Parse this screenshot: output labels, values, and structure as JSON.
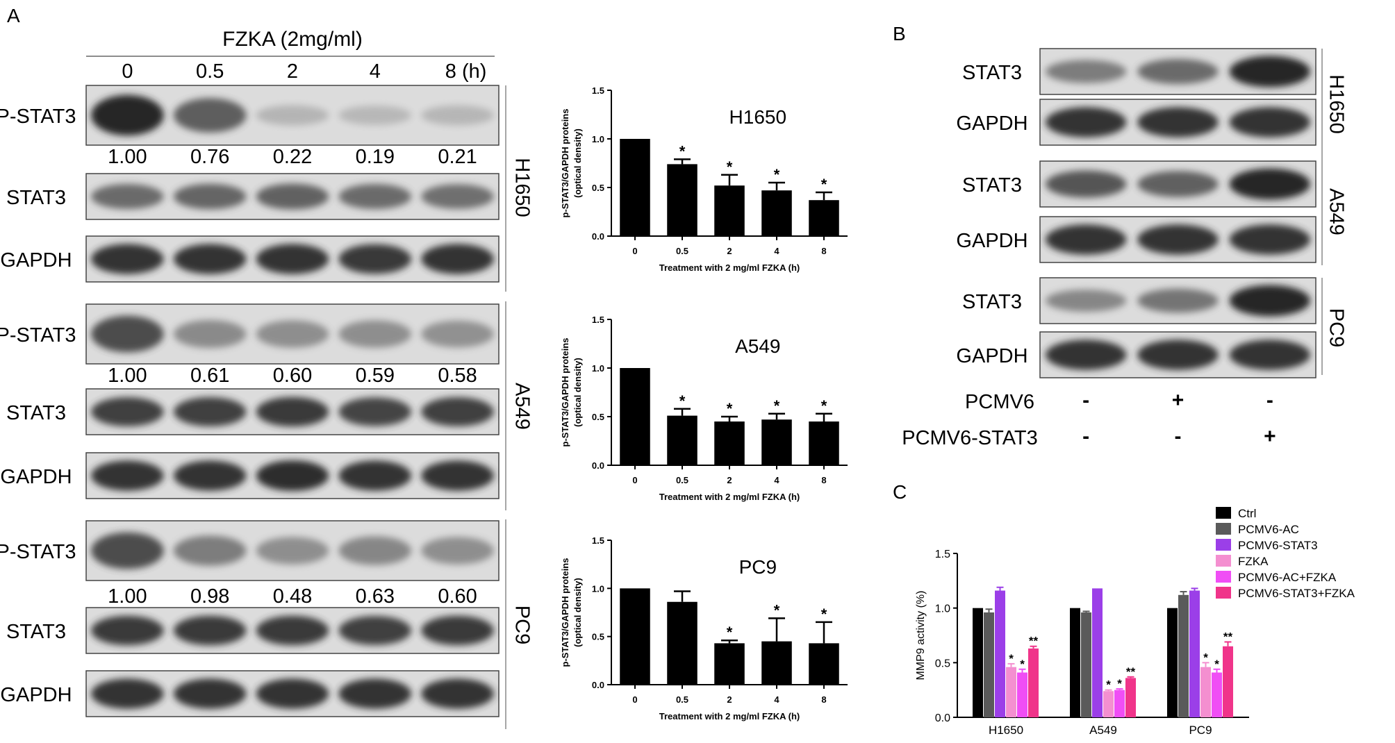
{
  "panel_labels": {
    "a": "A",
    "b": "B",
    "c": "C"
  },
  "blot_a": {
    "header": "FZKA (2mg/ml)",
    "times": [
      "0",
      "0.5",
      "2",
      "4",
      "8 (h)"
    ],
    "groups": [
      {
        "cell": "H1650",
        "rows": [
          "P-STAT3",
          "STAT3",
          "GAPDH"
        ],
        "densities": [
          "1.00",
          "0.76",
          "0.22",
          "0.19",
          "0.21"
        ],
        "band_intensity": {
          "P-STAT3": [
            1.0,
            0.76,
            0.22,
            0.19,
            0.21
          ],
          "STAT3": [
            0.7,
            0.72,
            0.74,
            0.7,
            0.68
          ],
          "GAPDH": [
            0.95,
            0.95,
            0.95,
            0.93,
            0.95
          ]
        }
      },
      {
        "cell": "A549",
        "rows": [
          "P-STAT3",
          "STAT3",
          "GAPDH"
        ],
        "densities": [
          "1.00",
          "0.61",
          "0.60",
          "0.59",
          "0.58"
        ],
        "band_intensity": {
          "P-STAT3": [
            0.85,
            0.52,
            0.5,
            0.5,
            0.48
          ],
          "STAT3": [
            0.9,
            0.9,
            0.92,
            0.88,
            0.9
          ],
          "GAPDH": [
            0.95,
            0.95,
            0.97,
            0.95,
            0.95
          ]
        }
      },
      {
        "cell": "PC9",
        "rows": [
          "P-STAT3",
          "STAT3",
          "GAPDH"
        ],
        "densities": [
          "1.00",
          "0.98",
          "0.48",
          "0.63",
          "0.60"
        ],
        "band_intensity": {
          "P-STAT3": [
            0.85,
            0.6,
            0.5,
            0.55,
            0.5
          ],
          "STAT3": [
            0.92,
            0.92,
            0.92,
            0.9,
            0.92
          ],
          "GAPDH": [
            0.95,
            0.95,
            0.95,
            0.95,
            0.95
          ]
        }
      }
    ]
  },
  "blot_b": {
    "groups": [
      {
        "cell": "H1650",
        "rows": [
          "STAT3",
          "GAPDH"
        ],
        "band_intensity": {
          "STAT3": [
            0.6,
            0.7,
            1.0
          ],
          "GAPDH": [
            0.95,
            0.95,
            0.95
          ]
        }
      },
      {
        "cell": "A549",
        "rows": [
          "STAT3",
          "GAPDH"
        ],
        "band_intensity": {
          "STAT3": [
            0.8,
            0.75,
            1.0
          ],
          "GAPDH": [
            0.95,
            0.95,
            0.95
          ]
        }
      },
      {
        "cell": "PC9",
        "rows": [
          "STAT3",
          "GAPDH"
        ],
        "band_intensity": {
          "STAT3": [
            0.55,
            0.65,
            1.0
          ],
          "GAPDH": [
            0.95,
            0.95,
            0.95
          ]
        }
      }
    ],
    "conditions": [
      {
        "label": "PCMV6",
        "signs": [
          "-",
          "+",
          "-"
        ]
      },
      {
        "label": "PCMV6-STAT3",
        "signs": [
          "-",
          "-",
          "+"
        ]
      }
    ]
  },
  "chart_data": [
    {
      "type": "bar",
      "title": "H1650",
      "categories": [
        "0",
        "0.5",
        "2",
        "4",
        "8"
      ],
      "values": [
        1.0,
        0.74,
        0.52,
        0.47,
        0.37
      ],
      "errors": [
        0,
        0.05,
        0.11,
        0.08,
        0.08
      ],
      "significance": [
        "",
        "*",
        "*",
        "*",
        "*"
      ],
      "xlabel": "Treatment with 2 mg/ml FZKA  (h)",
      "ylabel": "p-STAT3/GAPDH proteins\n(optical density)",
      "ylim": [
        0,
        1.5
      ],
      "yticks": [
        "0.0",
        "0.5",
        "1.0",
        "1.5"
      ]
    },
    {
      "type": "bar",
      "title": "A549",
      "categories": [
        "0",
        "0.5",
        "2",
        "4",
        "8"
      ],
      "values": [
        1.0,
        0.51,
        0.45,
        0.47,
        0.45
      ],
      "errors": [
        0,
        0.07,
        0.05,
        0.06,
        0.08
      ],
      "significance": [
        "",
        "*",
        "*",
        "*",
        "*"
      ],
      "xlabel": "Treatment with 2 mg/ml FZKA  (h)",
      "ylabel": "p-STAT3/GAPDH proteins\n(optical density)",
      "ylim": [
        0,
        1.5
      ],
      "yticks": [
        "0.0",
        "0.5",
        "1.0",
        "1.5"
      ]
    },
    {
      "type": "bar",
      "title": "PC9",
      "categories": [
        "0",
        "0.5",
        "2",
        "4",
        "8"
      ],
      "values": [
        1.0,
        0.86,
        0.43,
        0.45,
        0.43
      ],
      "errors": [
        0,
        0.11,
        0.03,
        0.24,
        0.22
      ],
      "significance": [
        "",
        "",
        "*",
        "*",
        "*"
      ],
      "xlabel": "Treatment with 2 mg/ml FZKA  (h)",
      "ylabel": "p-STAT3/GAPDH proteins\n(optical density)",
      "ylim": [
        0,
        1.5
      ],
      "yticks": [
        "0.0",
        "0.5",
        "1.0",
        "1.5"
      ]
    },
    {
      "type": "bar",
      "categories": [
        "H1650",
        "A549",
        "PC9"
      ],
      "ylabel": "MMP9 activity (%)",
      "ylim": [
        0,
        1.5
      ],
      "yticks": [
        "0.0",
        "0.5",
        "1.0",
        "1.5"
      ],
      "legend": "top-right",
      "series": [
        {
          "name": "Ctrl",
          "color": "#000000",
          "values": [
            1.0,
            1.0,
            1.0
          ],
          "errors": [
            0,
            0,
            0
          ],
          "significance": [
            "",
            "",
            ""
          ]
        },
        {
          "name": "PCMV6-AC",
          "color": "#5a5a5a",
          "values": [
            0.96,
            0.96,
            1.12
          ],
          "errors": [
            0.03,
            0.01,
            0.03
          ],
          "significance": [
            "",
            "",
            ""
          ]
        },
        {
          "name": "PCMV6-STAT3",
          "color": "#9b3fe8",
          "values": [
            1.16,
            1.18,
            1.16
          ],
          "errors": [
            0.03,
            0,
            0.02
          ],
          "significance": [
            "",
            "",
            ""
          ]
        },
        {
          "name": "FZKA",
          "color": "#f48fd0",
          "values": [
            0.46,
            0.24,
            0.46
          ],
          "errors": [
            0.03,
            0.01,
            0.04
          ],
          "significance": [
            "*",
            "*",
            "*"
          ]
        },
        {
          "name": "PCMV6-AC+FZKA",
          "color": "#f04ef5",
          "values": [
            0.41,
            0.25,
            0.41
          ],
          "errors": [
            0.03,
            0.01,
            0.03
          ],
          "significance": [
            "*",
            "*",
            "*"
          ]
        },
        {
          "name": "PCMV6-STAT3+FZKA",
          "color": "#f0348a",
          "values": [
            0.63,
            0.36,
            0.65
          ],
          "errors": [
            0.02,
            0.01,
            0.04
          ],
          "significance": [
            "**",
            "**",
            "**"
          ]
        }
      ]
    }
  ]
}
